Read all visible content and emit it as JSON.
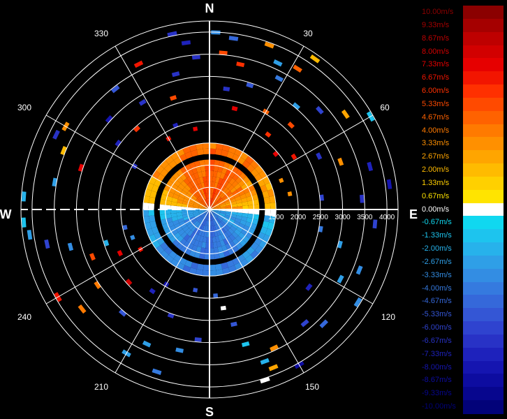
{
  "chart_data": {
    "type": "polar-radar-ppi",
    "title": "",
    "center_marker": "*",
    "compass": {
      "north": "N",
      "east": "E",
      "south": "S",
      "west": "W"
    },
    "bearing_labels": [
      "30",
      "60",
      "120",
      "150",
      "210",
      "240",
      "300",
      "330"
    ],
    "range_labels": [
      "1500",
      "2000",
      "2500",
      "3000",
      "3500",
      "4000"
    ],
    "range_max": 4250,
    "range_ring_step": 500,
    "spoke_step_deg": 30,
    "colorbar": {
      "labels": [
        "10.00m/s",
        "9.33m/s",
        "8.67m/s",
        "8.00m/s",
        "7.33m/s",
        "6.67m/s",
        "6.00m/s",
        "5.33m/s",
        "4.67m/s",
        "4.00m/s",
        "3.33m/s",
        "2.67m/s",
        "2.00m/s",
        "1.33m/s",
        "0.67m/s",
        "0.00m/s",
        "-0.67m/s",
        "-1.33m/s",
        "-2.00m/s",
        "-2.67m/s",
        "-3.33m/s",
        "-4.00m/s",
        "-4.67m/s",
        "-5.33m/s",
        "-6.00m/s",
        "-6.67m/s",
        "-7.33m/s",
        "-8.00m/s",
        "-8.67m/s",
        "-9.33m/s",
        "-10.00m/s"
      ],
      "colors": [
        "#8B0000",
        "#A50000",
        "#BE0000",
        "#D20000",
        "#E60000",
        "#F21500",
        "#FF3000",
        "#FF4A00",
        "#FF6200",
        "#FF7A00",
        "#FF9000",
        "#FFA500",
        "#FFBB00",
        "#FFD000",
        "#FFE400",
        "#FFFFFF",
        "#10D8F0",
        "#1DC4EE",
        "#27B2EB",
        "#2F9FE7",
        "#338DE3",
        "#357ADF",
        "#3568DA",
        "#3456D5",
        "#2F43CF",
        "#2832C6",
        "#1E22BC",
        "#1515B0",
        "#0D0CA0",
        "#07068E",
        "#020279"
      ]
    },
    "core": {
      "velocity_north": 5.5,
      "velocity_south": -4.5,
      "extent_range": 1500
    },
    "bins": [
      {
        "az": 2,
        "r": 3950,
        "v": -3.6
      },
      {
        "az": 8,
        "r": 3850,
        "v": -4.6
      },
      {
        "az": 348,
        "r": 4000,
        "v": -6.7
      },
      {
        "az": 352,
        "r": 3750,
        "v": -7.2
      },
      {
        "az": 5,
        "r": 3500,
        "v": 5.2
      },
      {
        "az": 12,
        "r": 3300,
        "v": 6.0
      },
      {
        "az": 355,
        "r": 3400,
        "v": -6.4
      },
      {
        "az": 20,
        "r": 3900,
        "v": 3.5
      },
      {
        "az": 25,
        "r": 3600,
        "v": -2.6
      },
      {
        "az": 28,
        "r": 3300,
        "v": -4.0
      },
      {
        "az": 32,
        "r": 3700,
        "v": 4.4
      },
      {
        "az": 35,
        "r": 4100,
        "v": 2.2
      },
      {
        "az": 40,
        "r": 3000,
        "v": -3.0
      },
      {
        "az": 44,
        "r": 2600,
        "v": 5.6
      },
      {
        "az": 48,
        "r": 3300,
        "v": -5.9
      },
      {
        "az": 55,
        "r": 3700,
        "v": 2.6
      },
      {
        "az": 60,
        "r": 4150,
        "v": -1.3
      },
      {
        "az": 58,
        "r": 2200,
        "v": 6.6
      },
      {
        "az": 64,
        "r": 2700,
        "v": -6.7
      },
      {
        "az": 70,
        "r": 3100,
        "v": 3.3
      },
      {
        "az": 75,
        "r": 3700,
        "v": -7.4
      },
      {
        "az": 82,
        "r": 4050,
        "v": -8.2
      },
      {
        "az": 86,
        "r": 3400,
        "v": -6.7
      },
      {
        "az": 95,
        "r": 3700,
        "v": -5.9
      },
      {
        "az": 100,
        "r": 2500,
        "v": -4.0
      },
      {
        "az": 105,
        "r": 3000,
        "v": -3.0
      },
      {
        "az": 112,
        "r": 3600,
        "v": -3.3
      },
      {
        "az": 118,
        "r": 3300,
        "v": -2.6
      },
      {
        "az": 122,
        "r": 3900,
        "v": -3.6
      },
      {
        "az": 128,
        "r": 2800,
        "v": -7.4
      },
      {
        "az": 135,
        "r": 3600,
        "v": -4.5
      },
      {
        "az": 140,
        "r": 3300,
        "v": -6.1
      },
      {
        "az": 150,
        "r": 4000,
        "v": -8.6
      },
      {
        "az": 155,
        "r": 3400,
        "v": 3.4
      },
      {
        "az": 158,
        "r": 3800,
        "v": 2.8
      },
      {
        "az": 160,
        "r": 3600,
        "v": -2.0
      },
      {
        "az": 162,
        "r": 4000,
        "v": 0.0
      },
      {
        "az": 165,
        "r": 3100,
        "v": -1.3
      },
      {
        "az": 168,
        "r": 2600,
        "v": -5.2
      },
      {
        "az": 172,
        "r": 2200,
        "v": 0.0
      },
      {
        "az": 176,
        "r": 1900,
        "v": -4.8
      },
      {
        "az": 185,
        "r": 2900,
        "v": -6.0
      },
      {
        "az": 192,
        "r": 3200,
        "v": -3.3
      },
      {
        "az": 198,
        "r": 3800,
        "v": -4.1
      },
      {
        "az": 200,
        "r": 2500,
        "v": -6.6
      },
      {
        "az": 205,
        "r": 3300,
        "v": -2.7
      },
      {
        "az": 210,
        "r": 3700,
        "v": -3.0
      },
      {
        "az": 215,
        "r": 2200,
        "v": -7.2
      },
      {
        "az": 220,
        "r": 3000,
        "v": -5.6
      },
      {
        "az": 228,
        "r": 2400,
        "v": 8.0
      },
      {
        "az": 232,
        "r": 3600,
        "v": 4.3
      },
      {
        "az": 236,
        "r": 3000,
        "v": 4.0
      },
      {
        "az": 240,
        "r": 3900,
        "v": 6.6
      },
      {
        "az": 244,
        "r": 2200,
        "v": 7.3
      },
      {
        "az": 248,
        "r": 2800,
        "v": 5.5
      },
      {
        "az": 252,
        "r": 2400,
        "v": -2.1
      },
      {
        "az": 255,
        "r": 3200,
        "v": -3.4
      },
      {
        "az": 258,
        "r": 3700,
        "v": -6.2
      },
      {
        "az": 262,
        "r": 4050,
        "v": -2.6
      },
      {
        "az": 266,
        "r": 4150,
        "v": -1.5
      },
      {
        "az": 274,
        "r": 4150,
        "v": -1.8
      },
      {
        "az": 280,
        "r": 3500,
        "v": -3.0
      },
      {
        "az": 288,
        "r": 3000,
        "v": 7.2
      },
      {
        "az": 292,
        "r": 3500,
        "v": 2.2
      },
      {
        "az": 296,
        "r": 3800,
        "v": -6.6
      },
      {
        "az": 300,
        "r": 3700,
        "v": 3.2
      },
      {
        "az": 306,
        "r": 2500,
        "v": -7.3
      },
      {
        "az": 312,
        "r": 3000,
        "v": -8.2
      },
      {
        "az": 318,
        "r": 2400,
        "v": 6.2
      },
      {
        "az": 322,
        "r": 3400,
        "v": -5.6
      },
      {
        "az": 328,
        "r": 2800,
        "v": -6.6
      },
      {
        "az": 334,
        "r": 3600,
        "v": 6.6
      },
      {
        "az": 338,
        "r": 2000,
        "v": -7.4
      },
      {
        "az": 342,
        "r": 2600,
        "v": 5.4
      },
      {
        "az": 346,
        "r": 3100,
        "v": -6.8
      },
      {
        "az": 8,
        "r": 2700,
        "v": -6.4
      },
      {
        "az": 14,
        "r": 2300,
        "v": 7.4
      },
      {
        "az": 18,
        "r": 2900,
        "v": -5.6
      },
      {
        "az": 30,
        "r": 2500,
        "v": 4.7
      },
      {
        "az": 38,
        "r": 2100,
        "v": 5.8
      },
      {
        "az": 50,
        "r": 1900,
        "v": 7.6
      },
      {
        "az": 68,
        "r": 1700,
        "v": 3.4
      },
      {
        "az": 79,
        "r": 1800,
        "v": 3.6
      },
      {
        "az": 84,
        "r": 2500,
        "v": -6.2
      },
      {
        "az": 240,
        "r": 1750,
        "v": 6.8
      },
      {
        "az": 250,
        "r": 1800,
        "v": -3.2
      },
      {
        "az": 258,
        "r": 1900,
        "v": -4.9
      },
      {
        "az": 300,
        "r": 1900,
        "v": -7.0
      },
      {
        "az": 330,
        "r": 1800,
        "v": 6.4
      },
      {
        "az": 350,
        "r": 1800,
        "v": 7.6
      },
      {
        "az": 190,
        "r": 1800,
        "v": -5.2
      },
      {
        "az": 210,
        "r": 1900,
        "v": -7.8
      }
    ],
    "grid": true,
    "legend": "right"
  }
}
